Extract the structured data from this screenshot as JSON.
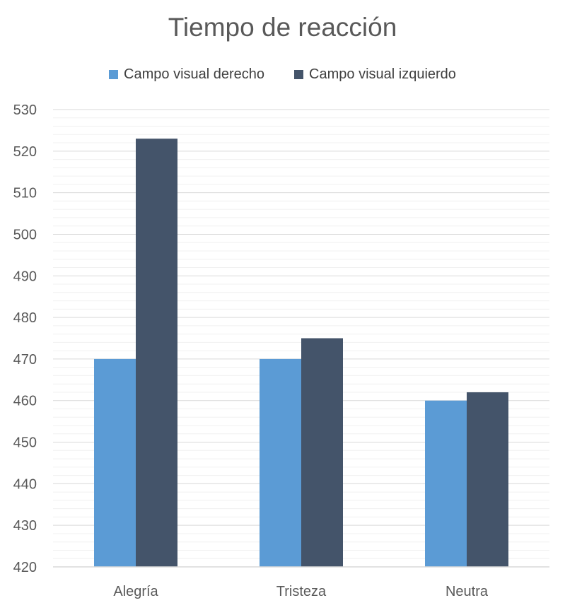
{
  "chart_data": {
    "type": "bar",
    "title": "Tiempo de reacción",
    "categories": [
      "Alegría",
      "Tristeza",
      "Neutra"
    ],
    "series": [
      {
        "name": "Campo visual derecho",
        "values": [
          470,
          470,
          460
        ],
        "color": "#5b9bd5"
      },
      {
        "name": "Campo visual izquierdo",
        "values": [
          523,
          475,
          462
        ],
        "color": "#44546a"
      }
    ],
    "ylim": [
      420,
      530
    ],
    "yticks": [
      420,
      430,
      440,
      450,
      460,
      470,
      480,
      490,
      500,
      510,
      520,
      530
    ],
    "grid": true,
    "legend": "top"
  }
}
